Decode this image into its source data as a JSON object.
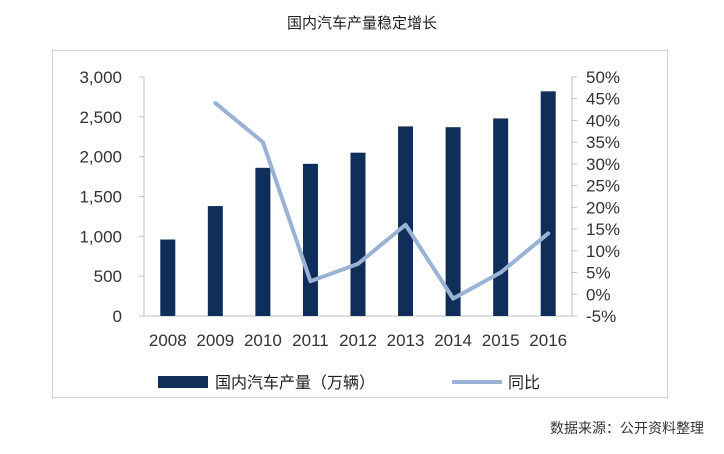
{
  "chart_data": {
    "type": "bar",
    "title": "国内汽车产量稳定增长",
    "categories": [
      "2008",
      "2009",
      "2010",
      "2011",
      "2012",
      "2013",
      "2014",
      "2015",
      "2016"
    ],
    "series": [
      {
        "name": "国内汽车产量（万辆）",
        "type": "bar",
        "axis": "left",
        "values": [
          960,
          1380,
          1860,
          1910,
          2050,
          2380,
          2370,
          2480,
          2820
        ],
        "color": "#0f2e5a"
      },
      {
        "name": "同比",
        "type": "line",
        "axis": "right",
        "values": [
          null,
          44,
          35,
          3,
          7,
          16,
          -1,
          5,
          14
        ],
        "color": "#9ab3d4"
      }
    ],
    "y_left": {
      "min": 0,
      "max": 3000,
      "step": 500,
      "tick_labels": [
        "0",
        "500",
        "1,000",
        "1,500",
        "2,000",
        "2,500",
        "3,000"
      ]
    },
    "y_right": {
      "min": -5,
      "max": 50,
      "step": 5,
      "tick_labels": [
        "-5%",
        "0%",
        "5%",
        "10%",
        "15%",
        "20%",
        "25%",
        "30%",
        "35%",
        "40%",
        "45%",
        "50%"
      ]
    },
    "legend_position": "bottom",
    "grid": false
  },
  "source": "数据来源：公开资料整理"
}
